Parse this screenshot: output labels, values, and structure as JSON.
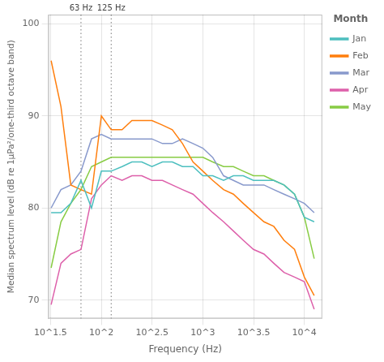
{
  "chart_data": {
    "type": "line",
    "xlabel": "Frequency (Hz)",
    "ylabel": "Median spectrum level (dB re 1μPa²/one-third octave band)",
    "log": "x",
    "xlim": [
      30,
      15000
    ],
    "xticks": [
      {
        "value": 31.622776601683793,
        "label": "10^1.5"
      },
      {
        "value": 100,
        "label": "10^2"
      },
      {
        "value": 316.22776601683796,
        "label": "10^2.5"
      },
      {
        "value": 1000,
        "label": "10^3"
      },
      {
        "value": 3162.2776601683795,
        "label": "10^3.5"
      },
      {
        "value": 10000,
        "label": "10^4"
      }
    ],
    "ylim": [
      68,
      101
    ],
    "yticks": [
      70,
      80,
      90,
      100
    ],
    "grid": true,
    "legend": "right",
    "legend_title": "Month",
    "annotations": [
      {
        "x": 63,
        "label": "63 Hz",
        "color": "#777777",
        "line_style": "dotted"
      },
      {
        "x": 125,
        "label": "125 Hz",
        "color": "#777777",
        "line_style": "dotted"
      }
    ],
    "x": [
      32,
      40,
      50,
      63,
      80,
      100,
      125,
      160,
      200,
      250,
      315,
      400,
      500,
      630,
      800,
      1000,
      1250,
      1600,
      2000,
      2500,
      3150,
      4000,
      5000,
      6300,
      8000,
      10000,
      12500
    ],
    "series": [
      {
        "name": "Jan",
        "color": "#4dbfbf",
        "values": [
          79.5,
          79.5,
          80.5,
          83.0,
          80.0,
          84.0,
          84.0,
          84.5,
          85.0,
          85.0,
          84.5,
          85.0,
          85.0,
          84.5,
          84.5,
          83.5,
          83.5,
          83.0,
          83.5,
          83.5,
          83.0,
          83.0,
          83.0,
          82.5,
          81.5,
          79.0,
          78.5
        ]
      },
      {
        "name": "Feb",
        "color": "#ff7f0e",
        "values": [
          96.0,
          91.0,
          82.5,
          82.0,
          81.5,
          90.0,
          88.5,
          88.5,
          89.5,
          89.5,
          89.5,
          89.0,
          88.5,
          87.0,
          85.0,
          84.0,
          83.0,
          82.0,
          81.5,
          80.5,
          79.5,
          78.5,
          78.0,
          76.5,
          75.5,
          72.5,
          70.5
        ]
      },
      {
        "name": "Mar",
        "color": "#8899cc",
        "values": [
          80.0,
          82.0,
          82.5,
          84.0,
          87.5,
          88.0,
          87.5,
          87.5,
          87.5,
          87.5,
          87.5,
          87.0,
          87.0,
          87.5,
          87.0,
          86.5,
          85.5,
          83.5,
          83.0,
          82.5,
          82.5,
          82.5,
          82.0,
          81.5,
          81.0,
          80.5,
          79.5
        ]
      },
      {
        "name": "Apr",
        "color": "#dd60aa",
        "values": [
          69.5,
          74.0,
          75.0,
          75.5,
          81.0,
          82.5,
          83.5,
          83.0,
          83.5,
          83.5,
          83.0,
          83.0,
          82.5,
          82.0,
          81.5,
          80.5,
          79.5,
          78.5,
          77.5,
          76.5,
          75.5,
          75.0,
          74.0,
          73.0,
          72.5,
          72.0,
          69.0
        ]
      },
      {
        "name": "May",
        "color": "#88cc44",
        "values": [
          73.5,
          78.5,
          80.5,
          82.0,
          84.5,
          85.0,
          85.5,
          85.5,
          85.5,
          85.5,
          85.5,
          85.5,
          85.5,
          85.5,
          85.5,
          85.5,
          85.0,
          84.5,
          84.5,
          84.0,
          83.5,
          83.5,
          83.0,
          82.5,
          81.5,
          79.0,
          74.5
        ]
      }
    ]
  }
}
